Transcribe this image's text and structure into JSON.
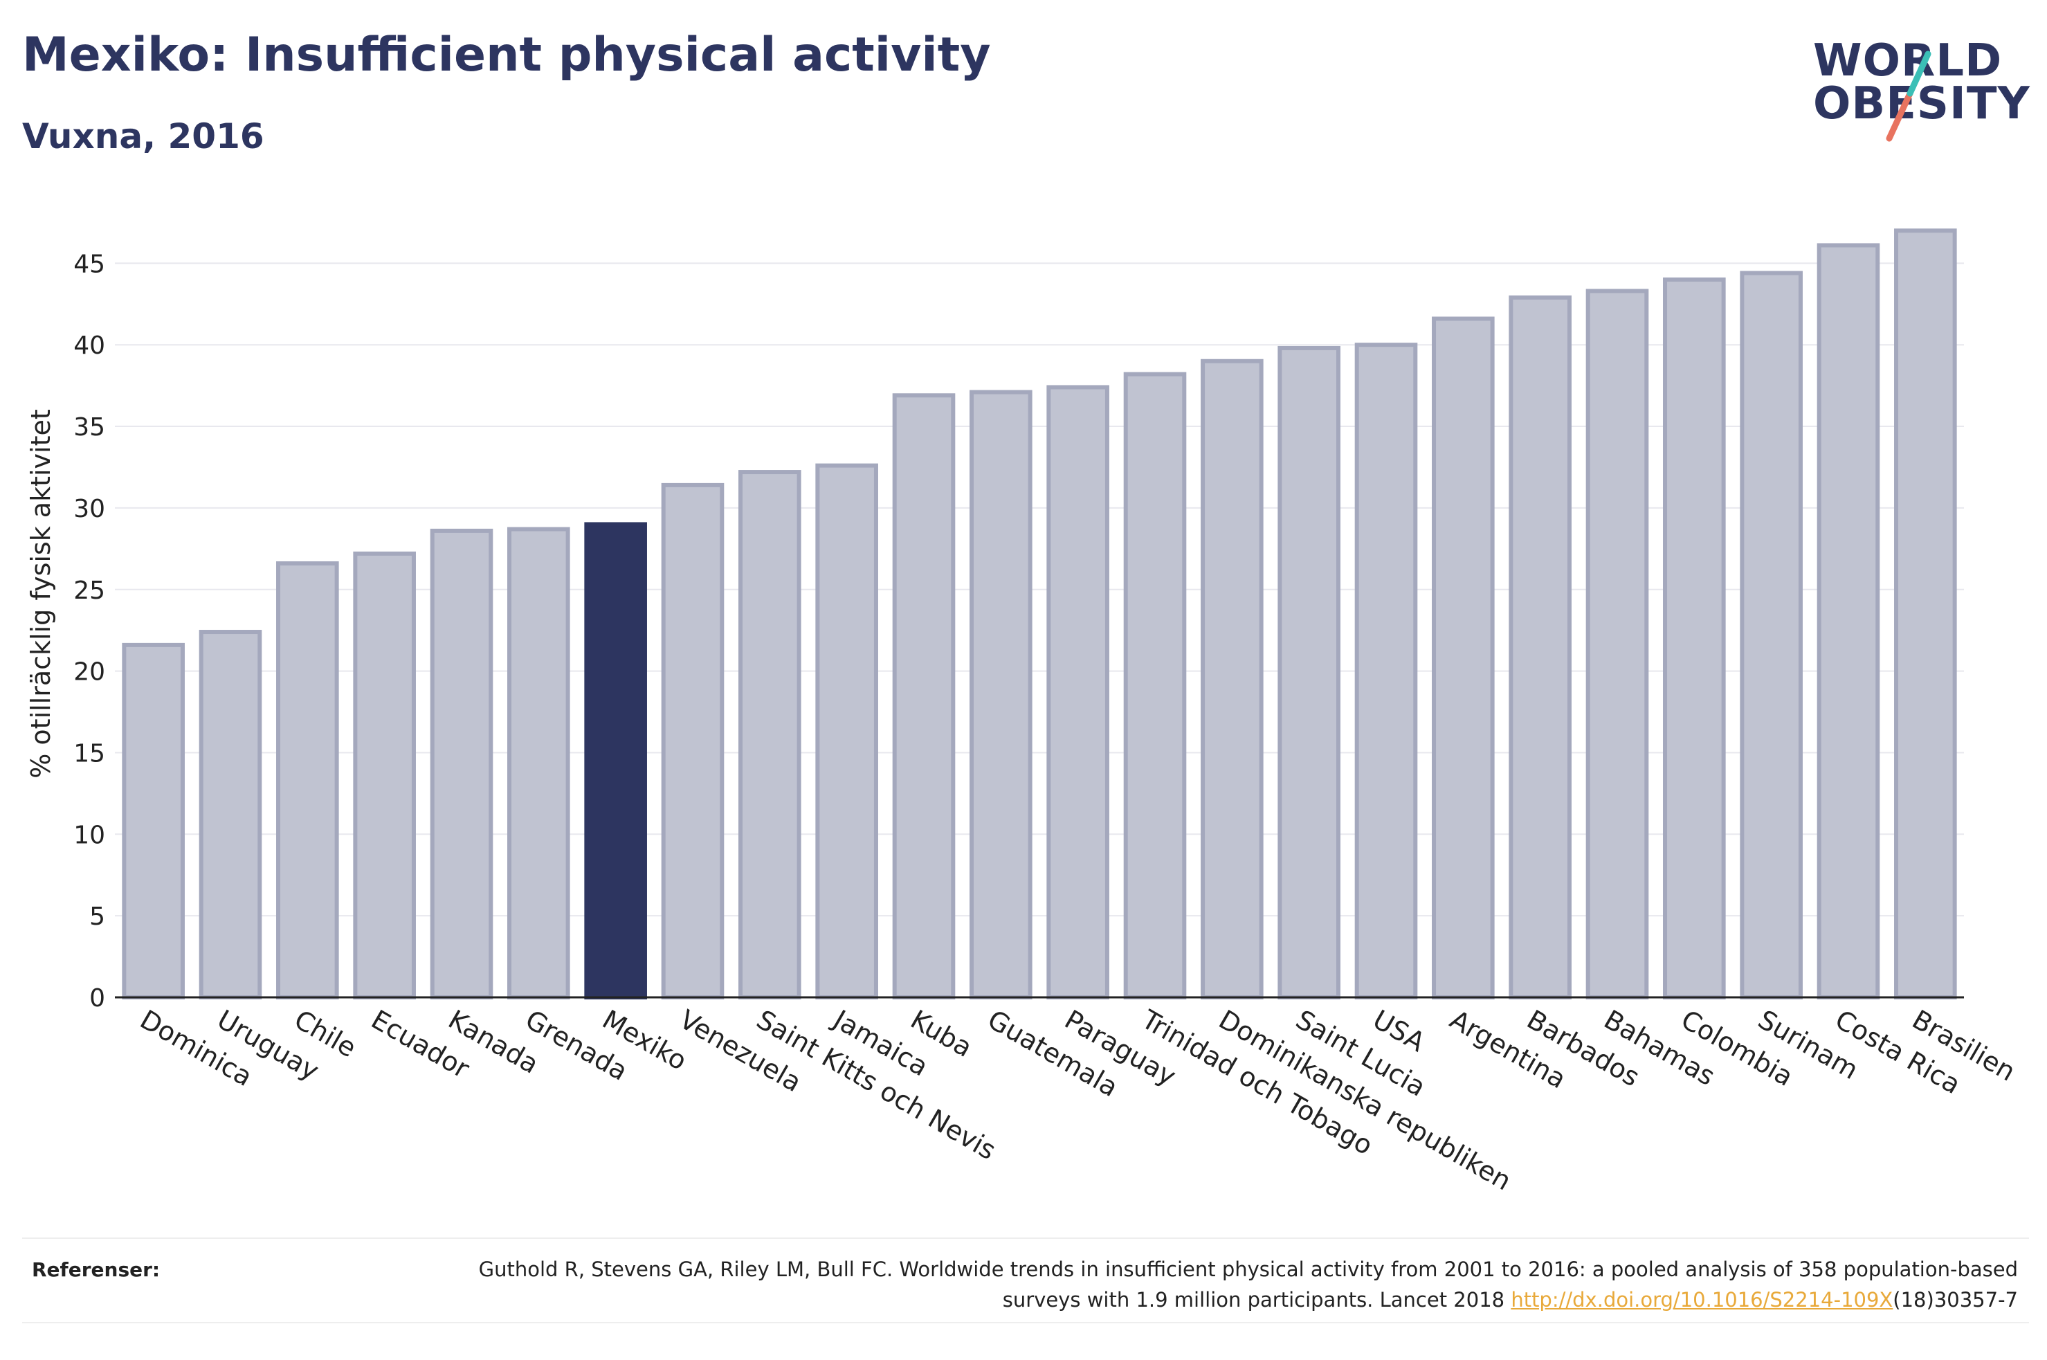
{
  "header": {
    "title": "Mexiko: Insufficient physical activity",
    "subtitle": "Vuxna, 2016"
  },
  "logo": {
    "line1": "WORLD",
    "line2": "OBESITY",
    "accent_teal": "#3bbfb6",
    "accent_coral": "#e8735f"
  },
  "colors": {
    "bar": "#c0c3d1",
    "bar_edge": "#a4a8bd",
    "highlight": "#2d3560",
    "text": "#2d3560",
    "grid": "#e8e8ee"
  },
  "chart_data": {
    "type": "bar",
    "title": "",
    "xlabel": "",
    "ylabel": "% otillräcklig fysisk aktivitet",
    "ylim": [
      0,
      47.5
    ],
    "yticks": [
      0,
      5,
      10,
      15,
      20,
      25,
      30,
      35,
      40,
      45
    ],
    "highlight": "Mexiko",
    "categories": [
      "Dominica",
      "Uruguay",
      "Chile",
      "Ecuador",
      "Kanada",
      "Grenada",
      "Mexiko",
      "Venezuela",
      "Saint Kitts och Nevis",
      "Jamaica",
      "Kuba",
      "Guatemala",
      "Paraguay",
      "Trinidad och Tobago",
      "Dominikanska republiken",
      "Saint Lucia",
      "USA",
      "Argentina",
      "Barbados",
      "Bahamas",
      "Colombia",
      "Surinam",
      "Costa Rica",
      "Brasilien"
    ],
    "values": [
      21.6,
      22.4,
      26.6,
      27.2,
      28.6,
      28.7,
      29.0,
      31.4,
      32.2,
      32.6,
      36.9,
      37.1,
      37.4,
      38.2,
      39.0,
      39.8,
      40.0,
      41.6,
      42.9,
      43.3,
      44.0,
      44.4,
      46.1,
      47.0
    ],
    "grid": true,
    "legend": "none"
  },
  "references": {
    "label": "Referenser:",
    "text_before": "Guthold R, Stevens GA, Riley LM, Bull FC. Worldwide trends in insufficient physical activity from 2001 to 2016: a pooled analysis of 358 population-based surveys with 1.9 million participants. Lancet 2018 ",
    "link_text": "http://dx.doi.org/10.1016/S2214-109X",
    "text_after": "(18)30357-7"
  }
}
